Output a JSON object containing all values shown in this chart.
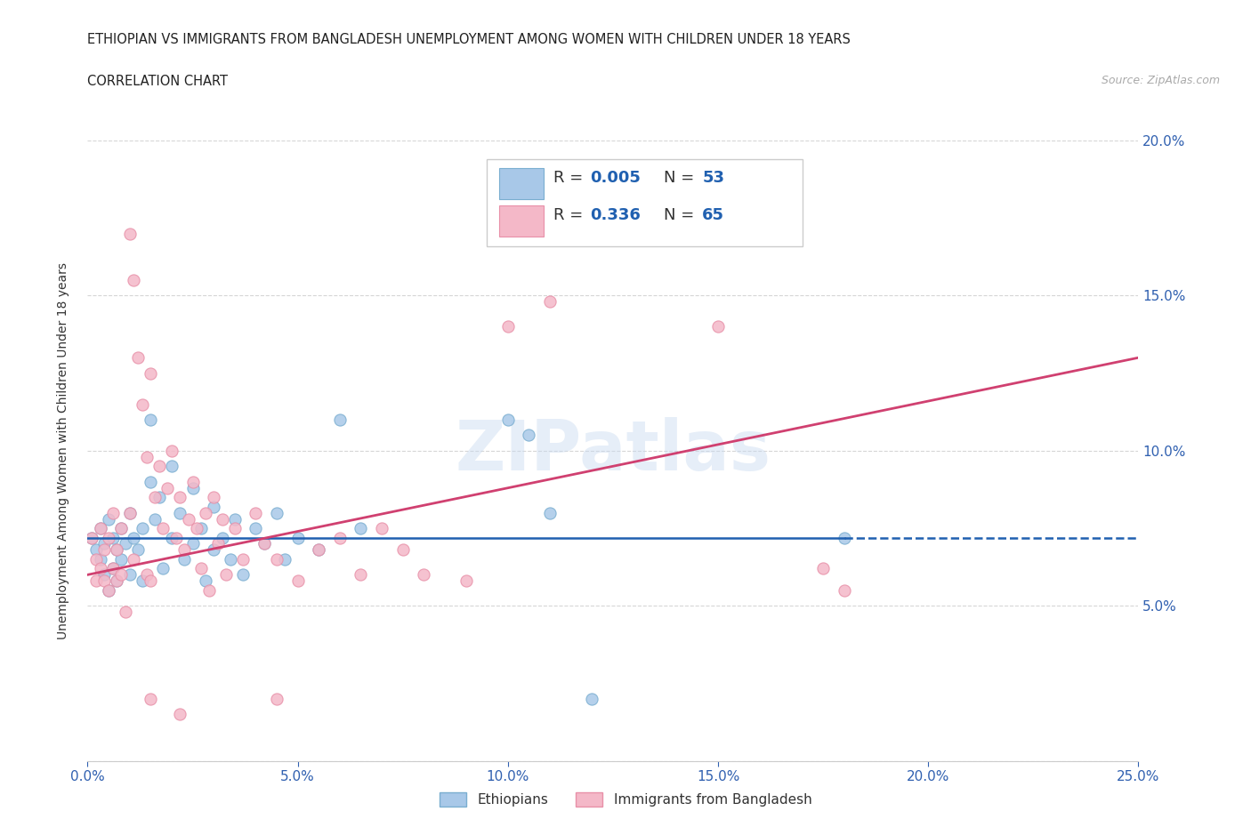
{
  "title_line1": "ETHIOPIAN VS IMMIGRANTS FROM BANGLADESH UNEMPLOYMENT AMONG WOMEN WITH CHILDREN UNDER 18 YEARS",
  "title_line2": "CORRELATION CHART",
  "source": "Source: ZipAtlas.com",
  "ylabel": "Unemployment Among Women with Children Under 18 years",
  "xlim": [
    0.0,
    0.25
  ],
  "ylim": [
    0.0,
    0.2
  ],
  "xticks": [
    0.0,
    0.05,
    0.1,
    0.15,
    0.2,
    0.25
  ],
  "yticks": [
    0.0,
    0.05,
    0.1,
    0.15,
    0.2
  ],
  "xticklabels": [
    "0.0%",
    "5.0%",
    "10.0%",
    "15.0%",
    "20.0%",
    "25.0%"
  ],
  "yticklabels_right": [
    "",
    "5.0%",
    "10.0%",
    "15.0%",
    "20.0%"
  ],
  "legend_labels": [
    "Ethiopians",
    "Immigrants from Bangladesh"
  ],
  "R_blue": "0.005",
  "N_blue": "53",
  "R_pink": "0.336",
  "N_pink": "65",
  "watermark": "ZIPatlas",
  "blue_color": "#a8c8e8",
  "pink_color": "#f4b8c8",
  "blue_edge_color": "#7aaed0",
  "pink_edge_color": "#e890a8",
  "blue_line_color": "#2060b0",
  "pink_line_color": "#d04070",
  "blue_scatter": [
    [
      0.001,
      0.072
    ],
    [
      0.002,
      0.068
    ],
    [
      0.003,
      0.075
    ],
    [
      0.003,
      0.065
    ],
    [
      0.004,
      0.07
    ],
    [
      0.004,
      0.06
    ],
    [
      0.005,
      0.078
    ],
    [
      0.005,
      0.055
    ],
    [
      0.006,
      0.072
    ],
    [
      0.006,
      0.062
    ],
    [
      0.007,
      0.068
    ],
    [
      0.007,
      0.058
    ],
    [
      0.008,
      0.075
    ],
    [
      0.008,
      0.065
    ],
    [
      0.009,
      0.07
    ],
    [
      0.01,
      0.08
    ],
    [
      0.01,
      0.06
    ],
    [
      0.011,
      0.072
    ],
    [
      0.012,
      0.068
    ],
    [
      0.013,
      0.075
    ],
    [
      0.013,
      0.058
    ],
    [
      0.015,
      0.11
    ],
    [
      0.015,
      0.09
    ],
    [
      0.016,
      0.078
    ],
    [
      0.017,
      0.085
    ],
    [
      0.018,
      0.062
    ],
    [
      0.02,
      0.095
    ],
    [
      0.02,
      0.072
    ],
    [
      0.022,
      0.08
    ],
    [
      0.023,
      0.065
    ],
    [
      0.025,
      0.088
    ],
    [
      0.025,
      0.07
    ],
    [
      0.027,
      0.075
    ],
    [
      0.028,
      0.058
    ],
    [
      0.03,
      0.082
    ],
    [
      0.03,
      0.068
    ],
    [
      0.032,
      0.072
    ],
    [
      0.034,
      0.065
    ],
    [
      0.035,
      0.078
    ],
    [
      0.037,
      0.06
    ],
    [
      0.04,
      0.075
    ],
    [
      0.042,
      0.07
    ],
    [
      0.045,
      0.08
    ],
    [
      0.047,
      0.065
    ],
    [
      0.05,
      0.072
    ],
    [
      0.055,
      0.068
    ],
    [
      0.06,
      0.11
    ],
    [
      0.065,
      0.075
    ],
    [
      0.1,
      0.11
    ],
    [
      0.105,
      0.105
    ],
    [
      0.11,
      0.08
    ],
    [
      0.18,
      0.072
    ],
    [
      0.12,
      0.02
    ]
  ],
  "pink_scatter": [
    [
      0.001,
      0.072
    ],
    [
      0.002,
      0.065
    ],
    [
      0.002,
      0.058
    ],
    [
      0.003,
      0.075
    ],
    [
      0.003,
      0.062
    ],
    [
      0.004,
      0.068
    ],
    [
      0.004,
      0.058
    ],
    [
      0.005,
      0.072
    ],
    [
      0.005,
      0.055
    ],
    [
      0.006,
      0.08
    ],
    [
      0.006,
      0.062
    ],
    [
      0.007,
      0.068
    ],
    [
      0.007,
      0.058
    ],
    [
      0.008,
      0.075
    ],
    [
      0.008,
      0.06
    ],
    [
      0.009,
      0.048
    ],
    [
      0.01,
      0.17
    ],
    [
      0.01,
      0.08
    ],
    [
      0.011,
      0.155
    ],
    [
      0.011,
      0.065
    ],
    [
      0.012,
      0.13
    ],
    [
      0.013,
      0.115
    ],
    [
      0.014,
      0.098
    ],
    [
      0.014,
      0.06
    ],
    [
      0.015,
      0.125
    ],
    [
      0.015,
      0.058
    ],
    [
      0.016,
      0.085
    ],
    [
      0.017,
      0.095
    ],
    [
      0.018,
      0.075
    ],
    [
      0.019,
      0.088
    ],
    [
      0.02,
      0.1
    ],
    [
      0.021,
      0.072
    ],
    [
      0.022,
      0.085
    ],
    [
      0.023,
      0.068
    ],
    [
      0.024,
      0.078
    ],
    [
      0.025,
      0.09
    ],
    [
      0.026,
      0.075
    ],
    [
      0.027,
      0.062
    ],
    [
      0.028,
      0.08
    ],
    [
      0.029,
      0.055
    ],
    [
      0.03,
      0.085
    ],
    [
      0.031,
      0.07
    ],
    [
      0.032,
      0.078
    ],
    [
      0.033,
      0.06
    ],
    [
      0.035,
      0.075
    ],
    [
      0.037,
      0.065
    ],
    [
      0.04,
      0.08
    ],
    [
      0.042,
      0.07
    ],
    [
      0.045,
      0.065
    ],
    [
      0.05,
      0.058
    ],
    [
      0.055,
      0.068
    ],
    [
      0.06,
      0.072
    ],
    [
      0.065,
      0.06
    ],
    [
      0.07,
      0.075
    ],
    [
      0.075,
      0.068
    ],
    [
      0.08,
      0.06
    ],
    [
      0.09,
      0.058
    ],
    [
      0.1,
      0.14
    ],
    [
      0.11,
      0.148
    ],
    [
      0.15,
      0.14
    ],
    [
      0.175,
      0.062
    ],
    [
      0.18,
      0.055
    ],
    [
      0.015,
      0.02
    ],
    [
      0.022,
      0.015
    ],
    [
      0.045,
      0.02
    ]
  ],
  "blue_trend": [
    0.0,
    0.25,
    0.072,
    0.072
  ],
  "pink_trend": [
    0.0,
    0.25,
    0.06,
    0.13
  ]
}
